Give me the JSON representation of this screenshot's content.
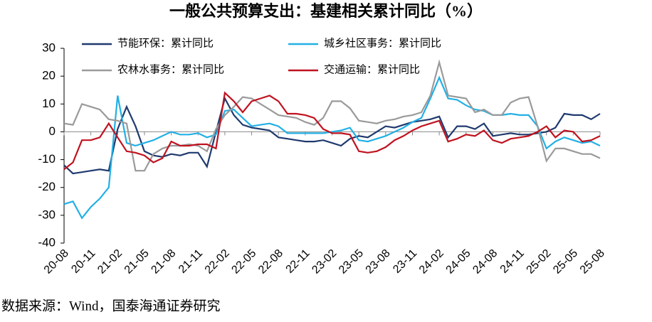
{
  "chart_data": {
    "type": "line",
    "title": "一般公共预算支出：基建相关累计同比（%）",
    "source": "数据来源：Wind，国泰海通证券研究",
    "categories": [
      "20-08",
      null,
      null,
      "20-11",
      null,
      null,
      "21-02",
      null,
      null,
      "21-05",
      null,
      null,
      "21-08",
      null,
      null,
      "21-11",
      null,
      null,
      "22-02",
      null,
      null,
      "22-05",
      null,
      null,
      "22-08",
      null,
      null,
      "22-11",
      null,
      null,
      "23-02",
      null,
      null,
      "23-05",
      null,
      null,
      "23-08",
      null,
      null,
      "23-11",
      null,
      null,
      "24-02",
      null,
      null,
      "24-05",
      null,
      null,
      "24-08",
      null,
      null,
      "24-11",
      null,
      null,
      "25-02",
      null,
      null,
      "25-05",
      null,
      null,
      "25-08"
    ],
    "series": [
      {
        "name": "节能环保：累计同比",
        "color": "#1f3a6e",
        "values": [
          -12,
          -15,
          -14.5,
          -14,
          -13.5,
          -14,
          1,
          9,
          2,
          -7,
          -8.5,
          -9,
          -8,
          -8.5,
          -7.5,
          -7.5,
          -12.5,
          0,
          12,
          6,
          2.5,
          1.5,
          1,
          0.5,
          -2,
          -2.5,
          -3,
          -3.5,
          -3.5,
          -3,
          -4,
          -5,
          -2.5,
          -1.5,
          -2,
          0,
          2,
          1.5,
          2.5,
          3.5,
          4,
          4.5,
          5.5,
          -2,
          2,
          2,
          1,
          3,
          -1.5,
          -1,
          -0.5,
          -1,
          -1,
          -0.5,
          0,
          1.5,
          6.5,
          6,
          6,
          4.5,
          6.5
        ]
      },
      {
        "name": "城乡社区事务：累计同比",
        "color": "#22b0e6",
        "values": [
          -26,
          -25,
          -31,
          -27,
          -24,
          -20,
          13,
          -4,
          -5,
          -4,
          -3,
          -1.5,
          0,
          -1,
          -1,
          -0.5,
          -2,
          -1,
          7.5,
          8,
          5,
          2,
          2.5,
          3,
          2,
          -0.5,
          -0.5,
          -0.5,
          -0.5,
          -0.5,
          0,
          0.5,
          1.5,
          -3,
          -3.5,
          -2.5,
          -1.5,
          0,
          1.5,
          3.5,
          5,
          12,
          19.5,
          12,
          11.5,
          9.5,
          8,
          7.5,
          6,
          6,
          6.5,
          6,
          6,
          2,
          -6,
          -3.5,
          -2,
          -3,
          -4,
          -3.5,
          -5
        ]
      },
      {
        "name": "农林水事务：累计同比",
        "color": "#9a9a9a",
        "values": [
          3,
          2.5,
          10,
          9,
          8,
          4.5,
          4,
          3,
          -14,
          -14,
          -8,
          -6,
          -5,
          -5,
          -4.5,
          -5,
          -7,
          1,
          6,
          9,
          12.5,
          12,
          10,
          8,
          6,
          5.5,
          5,
          3.5,
          2.5,
          5,
          11,
          11,
          8.5,
          4,
          3.5,
          3,
          4,
          4.5,
          5.5,
          6,
          7,
          13,
          25,
          13,
          12.5,
          12,
          7,
          8,
          6,
          6,
          10.5,
          12,
          12.5,
          2,
          -10.5,
          -6,
          -6,
          -7,
          -8,
          -8,
          -9.5
        ]
      },
      {
        "name": "交通运输：累计同比",
        "color": "#c0121f",
        "values": [
          -13.5,
          -11,
          -3,
          -3,
          -2,
          3,
          -2,
          -7,
          -7.5,
          -8.5,
          -11,
          -9.5,
          -3.5,
          -5,
          -5,
          -4.5,
          -4.5,
          -6,
          14,
          11,
          7,
          11,
          12,
          13,
          11,
          6.5,
          6.5,
          6,
          5,
          1,
          -0.5,
          -0.5,
          -1,
          -7,
          -7.5,
          -7,
          -5.5,
          -3,
          -1.5,
          0.5,
          2,
          3,
          4,
          -3.5,
          -2.5,
          -1,
          -1.5,
          0.5,
          -3,
          -4,
          -2.5,
          -2,
          -1.5,
          0,
          2,
          -2,
          0.5,
          0,
          -3.5,
          -3,
          -1.5
        ]
      }
    ],
    "ylim": [
      -40,
      30
    ],
    "yticks": [
      -40,
      -30,
      -20,
      -10,
      0,
      10,
      20,
      30
    ]
  }
}
